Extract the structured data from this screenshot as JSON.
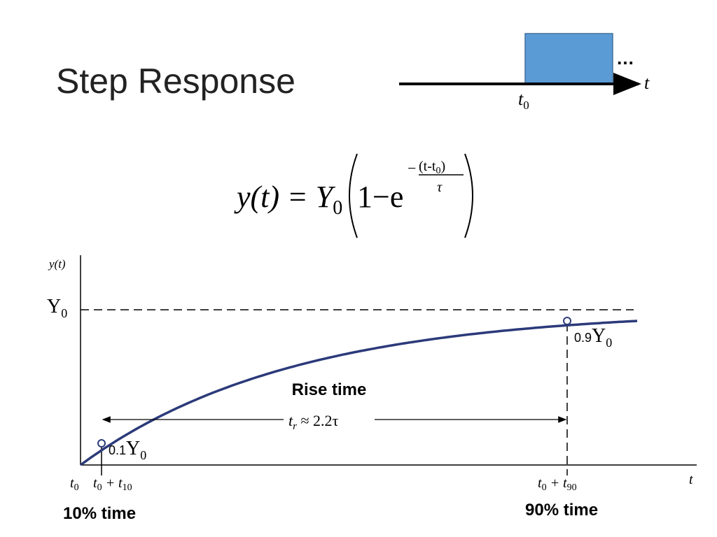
{
  "title": "Step Response",
  "step": {
    "t": "t",
    "t0": {
      "base": "t",
      "sub": "0"
    },
    "ellipsis": "…"
  },
  "equation": {
    "lhs": "y(t) = Y",
    "lhs_sub": "0",
    "one_minus_e": "1−e",
    "minus": "−",
    "num_open": "(t-t",
    "num_sub": "0",
    "num_close": ")",
    "den": "τ"
  },
  "plot": {
    "y_label": "y(t)",
    "y0": {
      "base": "Y",
      "sub": "0"
    },
    "p90": {
      "coef": "0.9",
      "base": "Y",
      "sub": "0"
    },
    "p10": {
      "coef": "0.1",
      "base": "Y",
      "sub": "0"
    },
    "rise_time": "Rise time",
    "rise_formula": {
      "base": "t",
      "sub": "r",
      "rest": " ≈ 2.2τ"
    },
    "x_label": "t",
    "x_ticks": [
      {
        "base": "t",
        "sub": "0"
      },
      {
        "base": "t",
        "sub": "0",
        "plus": " + t",
        "sub2": "10"
      },
      {
        "base": "t",
        "sub": "0",
        "plus": " + t",
        "sub2": "90"
      }
    ],
    "time10": "10% time",
    "time90": "90% time"
  }
}
